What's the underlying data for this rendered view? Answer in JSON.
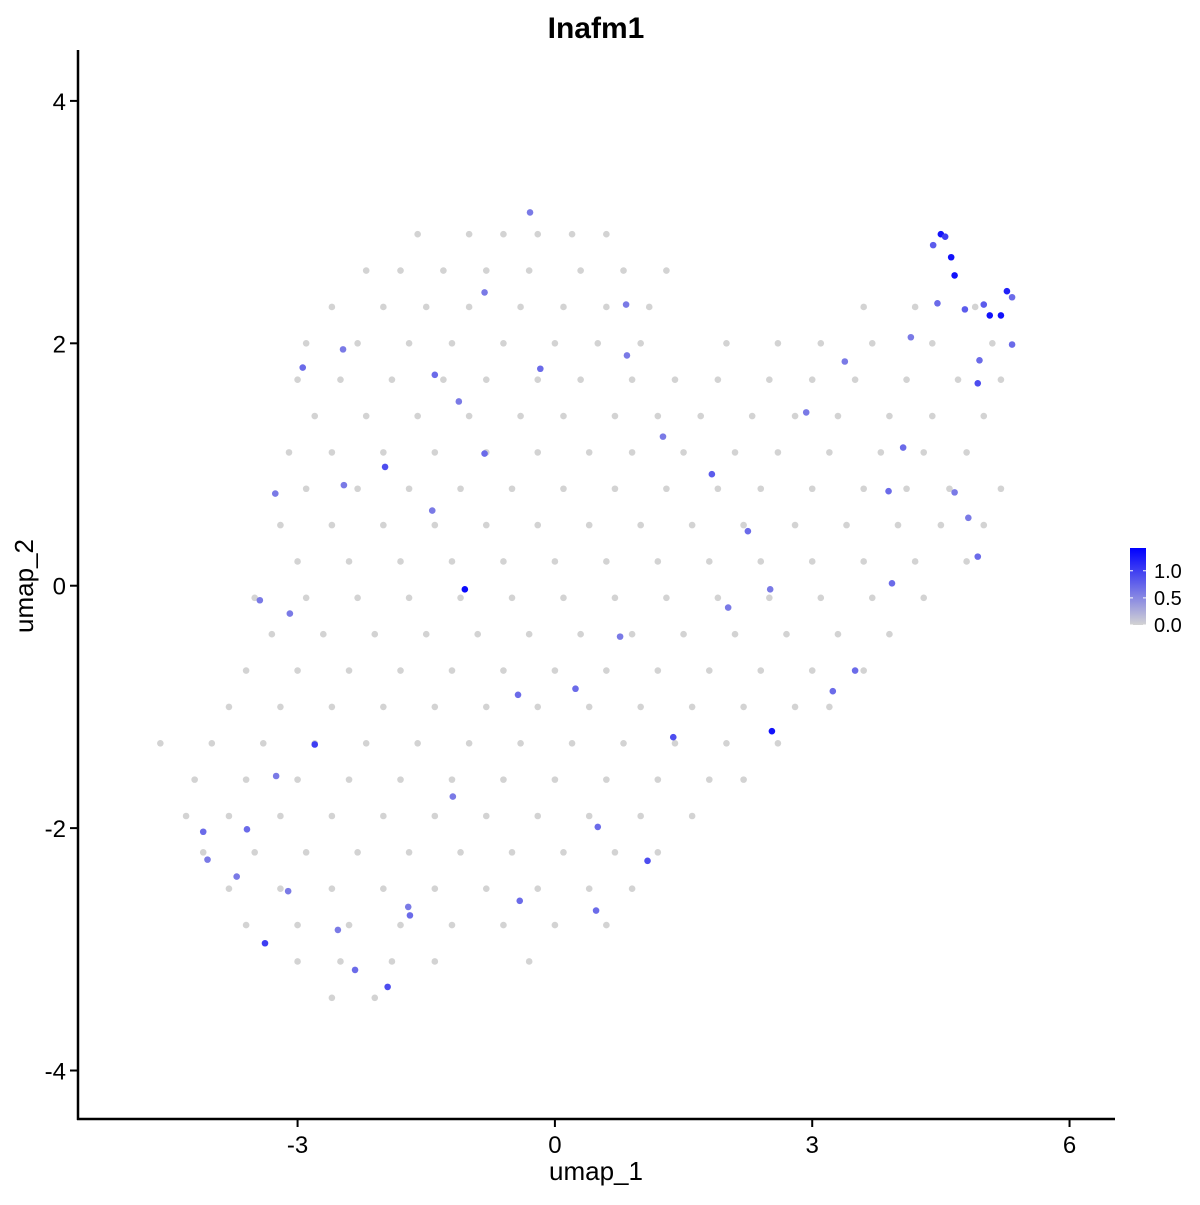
{
  "chart_data": {
    "type": "scatter",
    "title": "Inafm1",
    "x_label": "umap_1",
    "y_label": "umap_2",
    "xlim": [
      -5.56,
      6.53
    ],
    "ylim": [
      -4.4,
      4.42
    ],
    "xticks": [
      -3,
      0,
      3,
      6
    ],
    "yticks": [
      -4,
      -2,
      0,
      2,
      4
    ],
    "color_scale": {
      "low": "#d3d3d3",
      "high": "#0000ff",
      "limits": [
        0,
        1.42
      ],
      "ticks": [
        {
          "value": 0,
          "label": "0.0"
        },
        {
          "value": 0.5,
          "label": "0.5"
        },
        {
          "value": 1,
          "label": "1.0"
        }
      ]
    },
    "x": [
      -1.6,
      -1.0,
      -0.6,
      -0.2,
      0.2,
      0.6,
      -2.2,
      -1.8,
      -1.3,
      -0.8,
      -0.3,
      0.3,
      0.8,
      1.3,
      -2.6,
      -2.0,
      -1.5,
      -1.0,
      -0.4,
      0.1,
      0.6,
      1.1,
      3.6,
      4.2,
      4.9,
      -2.9,
      -2.3,
      -1.7,
      -1.2,
      -0.6,
      0.0,
      0.5,
      1.0,
      2.0,
      2.6,
      3.1,
      3.7,
      4.4,
      5.1,
      -3.0,
      -2.5,
      -1.9,
      -1.3,
      -0.8,
      -0.2,
      0.3,
      0.9,
      1.4,
      1.9,
      2.5,
      3.0,
      3.5,
      4.1,
      4.7,
      5.2,
      -2.8,
      -2.2,
      -1.6,
      -1.0,
      -0.4,
      0.1,
      0.7,
      1.2,
      1.7,
      2.3,
      2.8,
      3.3,
      3.9,
      4.4,
      5.0,
      -3.1,
      -2.6,
      -2.0,
      -1.4,
      -0.8,
      -0.2,
      0.4,
      0.9,
      1.5,
      2.1,
      2.6,
      3.2,
      3.8,
      4.3,
      4.8,
      -2.9,
      -2.3,
      -1.7,
      -1.1,
      -0.5,
      0.1,
      0.7,
      1.3,
      1.9,
      2.4,
      3.0,
      3.6,
      4.1,
      4.6,
      5.2,
      -3.2,
      -2.6,
      -2.0,
      -1.4,
      -0.8,
      -0.2,
      0.4,
      1.0,
      1.6,
      2.2,
      2.8,
      3.4,
      4.0,
      4.5,
      5.0,
      -3.0,
      -2.4,
      -1.8,
      -1.2,
      -0.6,
      0.0,
      0.6,
      1.2,
      1.8,
      2.4,
      3.0,
      3.6,
      4.2,
      4.8,
      -3.5,
      -2.9,
      -2.3,
      -1.7,
      -1.1,
      -0.5,
      0.1,
      0.7,
      1.3,
      1.9,
      2.5,
      3.1,
      3.7,
      4.3,
      -3.3,
      -2.7,
      -2.1,
      -1.5,
      -0.9,
      -0.3,
      0.3,
      0.9,
      1.5,
      2.1,
      2.7,
      3.3,
      3.9,
      -3.6,
      -3.0,
      -2.4,
      -1.8,
      -1.2,
      -0.6,
      0.0,
      0.6,
      1.2,
      1.8,
      2.4,
      3.0,
      3.6,
      -3.8,
      -3.2,
      -2.6,
      -2.0,
      -1.4,
      -0.8,
      -0.2,
      0.4,
      1.0,
      1.6,
      2.2,
      2.8,
      3.2,
      -4.6,
      -4.0,
      -3.4,
      -2.8,
      -2.2,
      -1.6,
      -1.0,
      -0.4,
      0.2,
      0.8,
      1.4,
      2.0,
      2.6,
      -4.2,
      -3.6,
      -3.0,
      -2.4,
      -1.8,
      -1.2,
      -0.6,
      0.0,
      0.6,
      1.2,
      1.8,
      2.2,
      -4.3,
      -3.8,
      -3.2,
      -2.6,
      -2.0,
      -1.4,
      -0.8,
      -0.2,
      0.4,
      1.0,
      1.6,
      -4.1,
      -3.5,
      -2.9,
      -2.3,
      -1.7,
      -1.1,
      -0.5,
      0.1,
      0.7,
      1.2,
      -3.8,
      -3.2,
      -2.6,
      -2.0,
      -1.4,
      -0.8,
      -0.2,
      0.4,
      0.9,
      -3.6,
      -3.0,
      -2.4,
      -1.8,
      -1.2,
      -0.6,
      0.0,
      0.6,
      -3.0,
      -2.5,
      -1.9,
      -1.4,
      -0.3,
      -2.6,
      -2.1,
      -1.05,
      2.53,
      4.5,
      4.62,
      4.66,
      5.07,
      5.2,
      5.27,
      4.93,
      4.55,
      4.41,
      4.78,
      5.0,
      5.33,
      5.33,
      4.95,
      4.46,
      -2.8,
      -3.38,
      -1.95,
      1.08,
      1.38,
      -1.98,
      -2.94,
      -1.4,
      -0.82,
      -0.17,
      1.83,
      2.25,
      3.5,
      3.24,
      0.24,
      -0.43,
      -4.1,
      -3.59,
      -2.33,
      -1.69,
      -0.41,
      0.5,
      0.48,
      3.93,
      4.93,
      4.06,
      3.89,
      2.51,
      2.02,
      0.76,
      -3.09,
      -3.25,
      -3.11,
      -2.53,
      -1.19,
      -1.43,
      -1.12,
      -0.82,
      -0.29,
      0.83,
      0.84,
      1.26,
      2.93,
      3.38,
      4.15,
      4.66,
      4.82,
      -2.47,
      -3.26,
      -2.46,
      -3.44,
      -4.05,
      -3.71,
      -1.71
    ],
    "y": [
      2.9,
      2.9,
      2.9,
      2.9,
      2.9,
      2.9,
      2.6,
      2.6,
      2.6,
      2.6,
      2.6,
      2.6,
      2.6,
      2.6,
      2.3,
      2.3,
      2.3,
      2.3,
      2.3,
      2.3,
      2.3,
      2.3,
      2.3,
      2.3,
      2.3,
      2.0,
      2.0,
      2.0,
      2.0,
      2.0,
      2.0,
      2.0,
      2.0,
      2.0,
      2.0,
      2.0,
      2.0,
      2.0,
      2.0,
      1.7,
      1.7,
      1.7,
      1.7,
      1.7,
      1.7,
      1.7,
      1.7,
      1.7,
      1.7,
      1.7,
      1.7,
      1.7,
      1.7,
      1.7,
      1.7,
      1.4,
      1.4,
      1.4,
      1.4,
      1.4,
      1.4,
      1.4,
      1.4,
      1.4,
      1.4,
      1.4,
      1.4,
      1.4,
      1.4,
      1.4,
      1.1,
      1.1,
      1.1,
      1.1,
      1.1,
      1.1,
      1.1,
      1.1,
      1.1,
      1.1,
      1.1,
      1.1,
      1.1,
      1.1,
      1.1,
      0.8,
      0.8,
      0.8,
      0.8,
      0.8,
      0.8,
      0.8,
      0.8,
      0.8,
      0.8,
      0.8,
      0.8,
      0.8,
      0.8,
      0.8,
      0.5,
      0.5,
      0.5,
      0.5,
      0.5,
      0.5,
      0.5,
      0.5,
      0.5,
      0.5,
      0.5,
      0.5,
      0.5,
      0.5,
      0.5,
      0.2,
      0.2,
      0.2,
      0.2,
      0.2,
      0.2,
      0.2,
      0.2,
      0.2,
      0.2,
      0.2,
      0.2,
      0.2,
      0.2,
      -0.1,
      -0.1,
      -0.1,
      -0.1,
      -0.1,
      -0.1,
      -0.1,
      -0.1,
      -0.1,
      -0.1,
      -0.1,
      -0.1,
      -0.1,
      -0.1,
      -0.4,
      -0.4,
      -0.4,
      -0.4,
      -0.4,
      -0.4,
      -0.4,
      -0.4,
      -0.4,
      -0.4,
      -0.4,
      -0.4,
      -0.4,
      -0.7,
      -0.7,
      -0.7,
      -0.7,
      -0.7,
      -0.7,
      -0.7,
      -0.7,
      -0.7,
      -0.7,
      -0.7,
      -0.7,
      -0.7,
      -1.0,
      -1.0,
      -1.0,
      -1.0,
      -1.0,
      -1.0,
      -1.0,
      -1.0,
      -1.0,
      -1.0,
      -1.0,
      -1.0,
      -1.0,
      -1.3,
      -1.3,
      -1.3,
      -1.3,
      -1.3,
      -1.3,
      -1.3,
      -1.3,
      -1.3,
      -1.3,
      -1.3,
      -1.3,
      -1.3,
      -1.6,
      -1.6,
      -1.6,
      -1.6,
      -1.6,
      -1.6,
      -1.6,
      -1.6,
      -1.6,
      -1.6,
      -1.6,
      -1.6,
      -1.9,
      -1.9,
      -1.9,
      -1.9,
      -1.9,
      -1.9,
      -1.9,
      -1.9,
      -1.9,
      -1.9,
      -1.9,
      -2.2,
      -2.2,
      -2.2,
      -2.2,
      -2.2,
      -2.2,
      -2.2,
      -2.2,
      -2.2,
      -2.2,
      -2.5,
      -2.5,
      -2.5,
      -2.5,
      -2.5,
      -2.5,
      -2.5,
      -2.5,
      -2.5,
      -2.8,
      -2.8,
      -2.8,
      -2.8,
      -2.8,
      -2.8,
      -2.8,
      -2.8,
      -3.1,
      -3.1,
      -3.1,
      -3.1,
      -3.1,
      -3.4,
      -3.4,
      -0.03,
      -1.2,
      2.9,
      2.71,
      2.56,
      2.23,
      2.23,
      2.43,
      1.67,
      2.88,
      2.81,
      2.28,
      2.32,
      2.38,
      1.99,
      1.86,
      2.33,
      -1.31,
      -2.95,
      -3.31,
      -2.27,
      -1.25,
      0.98,
      1.8,
      1.74,
      1.09,
      1.79,
      0.92,
      0.45,
      -0.7,
      -0.87,
      -0.85,
      -0.9,
      -2.03,
      -2.01,
      -3.17,
      -2.72,
      -2.6,
      -1.99,
      -2.68,
      0.02,
      0.24,
      1.14,
      0.78,
      -0.03,
      -0.18,
      -0.42,
      -0.23,
      -1.57,
      -2.52,
      -2.84,
      -1.74,
      0.62,
      1.52,
      2.42,
      3.08,
      2.32,
      1.9,
      1.23,
      1.43,
      1.85,
      2.05,
      0.77,
      0.56,
      1.95,
      0.76,
      0.83,
      -0.12,
      -2.26,
      -2.4,
      -2.65
    ],
    "values": [
      0,
      0,
      0,
      0,
      0,
      0,
      0,
      0,
      0,
      0,
      0,
      0,
      0,
      0,
      0,
      0,
      0,
      0,
      0,
      0,
      0,
      0,
      0,
      0,
      0,
      0,
      0,
      0,
      0,
      0,
      0,
      0,
      0,
      0,
      0,
      0,
      0,
      0,
      0,
      0,
      0,
      0,
      0,
      0,
      0,
      0,
      0,
      0,
      0,
      0,
      0,
      0,
      0,
      0,
      0,
      0,
      0,
      0,
      0,
      0,
      0,
      0,
      0,
      0,
      0,
      0,
      0,
      0,
      0,
      0,
      0,
      0,
      0,
      0,
      0,
      0,
      0,
      0,
      0,
      0,
      0,
      0,
      0,
      0,
      0,
      0,
      0,
      0,
      0,
      0,
      0,
      0,
      0,
      0,
      0,
      0,
      0,
      0,
      0,
      0,
      0,
      0,
      0,
      0,
      0,
      0,
      0,
      0,
      0,
      0,
      0,
      0,
      0,
      0,
      0,
      0,
      0,
      0,
      0,
      0,
      0,
      0,
      0,
      0,
      0,
      0,
      0,
      0,
      0,
      0,
      0,
      0,
      0,
      0,
      0,
      0,
      0,
      0,
      0,
      0,
      0,
      0,
      0,
      0,
      0,
      0,
      0,
      0,
      0,
      0,
      0,
      0,
      0,
      0,
      0,
      0,
      0,
      0,
      0,
      0,
      0,
      0,
      0,
      0,
      0,
      0,
      0,
      0,
      0,
      0,
      0,
      0,
      0,
      0,
      0,
      0,
      0,
      0,
      0,
      0,
      0,
      0,
      0,
      0,
      0,
      0,
      0,
      0,
      0,
      0,
      0,
      0,
      0,
      0,
      0,
      0,
      0,
      0,
      0,
      0,
      0,
      0,
      0,
      0,
      0,
      0,
      0,
      0,
      0,
      0,
      0,
      0,
      0,
      0,
      0,
      0,
      0,
      0,
      0,
      0,
      0,
      0,
      0,
      0,
      0,
      0,
      0,
      0,
      0,
      0,
      0,
      0,
      0,
      0,
      0,
      0,
      0,
      0,
      0,
      0,
      0,
      0,
      0,
      0,
      0,
      0,
      0,
      0,
      0,
      0,
      0,
      0,
      1.35,
      1.3,
      1.3,
      1.3,
      1.3,
      1.3,
      1.3,
      1.2,
      0.9,
      1.0,
      0.8,
      0.8,
      0.8,
      0.7,
      0.7,
      0.7,
      0.7,
      1.0,
      1.0,
      0.9,
      0.9,
      0.9,
      0.9,
      0.7,
      0.7,
      0.7,
      0.7,
      0.8,
      0.7,
      0.7,
      0.7,
      0.7,
      0.7,
      0.7,
      0.7,
      0.7,
      0.7,
      0.7,
      0.7,
      0.7,
      0.7,
      0.7,
      0.7,
      0.7,
      0.6,
      0.6,
      0.6,
      0.6,
      0.6,
      0.6,
      0.6,
      0.6,
      0.6,
      0.6,
      0.6,
      0.6,
      0.6,
      0.6,
      0.6,
      0.6,
      0.6,
      0.6,
      0.6,
      0.6,
      0.6,
      0.6,
      0.6,
      0.6,
      0.6,
      0.6,
      0.6
    ]
  }
}
